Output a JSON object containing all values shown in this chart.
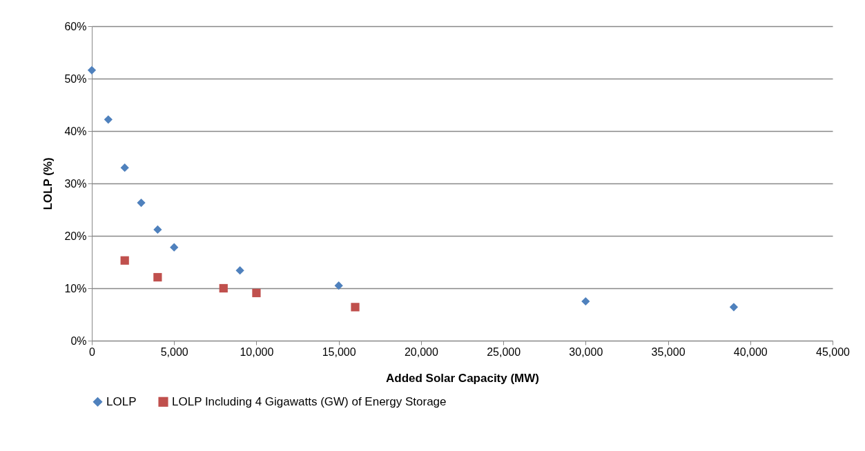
{
  "chart_data": {
    "type": "scatter",
    "xlabel": "Added Solar Capacity (MW)",
    "ylabel": "LOLP (%)",
    "series": [
      {
        "name": "LOLP",
        "color": "#4f81bd",
        "marker": "diamond",
        "x": [
          0,
          1000,
          2000,
          3000,
          4000,
          5000,
          9000,
          15000,
          30000,
          39000
        ],
        "values": [
          51.6,
          42.2,
          33.0,
          26.3,
          21.2,
          17.8,
          13.4,
          10.5,
          7.5,
          6.4
        ]
      },
      {
        "name": "LOLP Including 4 Gigawatts (GW) of Energy Storage",
        "color": "#c0504d",
        "marker": "square",
        "x": [
          2000,
          4000,
          8000,
          10000,
          16000
        ],
        "values": [
          15.3,
          12.1,
          10.0,
          9.1,
          6.4
        ]
      }
    ],
    "xlim": [
      0,
      45000
    ],
    "xticks": [
      0,
      {
        "value": 5000,
        "label": "5,000"
      },
      {
        "value": 10000,
        "label": "10,000"
      },
      {
        "value": 15000,
        "label": "15,000"
      },
      {
        "value": 20000,
        "label": "20,000"
      },
      {
        "value": 25000,
        "label": "25,000"
      },
      {
        "value": 30000,
        "label": "30,000"
      },
      {
        "value": 35000,
        "label": "35,000"
      },
      {
        "value": 40000,
        "label": "40,000"
      },
      {
        "value": 45000,
        "label": "45,000"
      }
    ],
    "ylim": [
      0,
      60
    ],
    "yticks": [
      {
        "value": 0,
        "label": "0%"
      },
      {
        "value": 10,
        "label": "10%"
      },
      {
        "value": 20,
        "label": "20%"
      },
      {
        "value": 30,
        "label": "30%"
      },
      {
        "value": 40,
        "label": "40%"
      },
      {
        "value": 50,
        "label": "50%"
      },
      {
        "value": 60,
        "label": "60%"
      }
    ],
    "grid": "y",
    "legend": "bottom"
  }
}
